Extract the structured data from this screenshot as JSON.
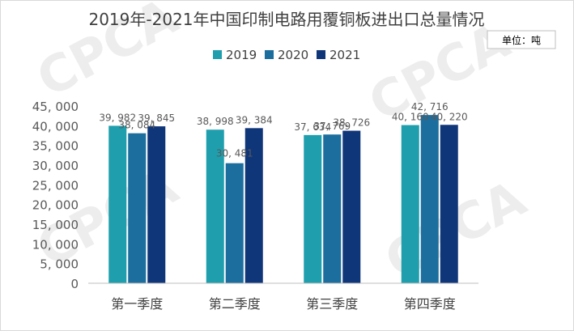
{
  "chart_data": {
    "type": "bar",
    "title": "2019年-2021年中国印制电路用覆铜板进出口总量情况",
    "unit_label": "单位：吨",
    "categories": [
      "第一季度",
      "第二季度",
      "第三季度",
      "第四季度"
    ],
    "series": [
      {
        "name": "2019",
        "values": [
          39982,
          38998,
          37634,
          40160
        ],
        "labels": [
          "39, 982",
          "38, 998",
          "37, 634",
          "40, 160"
        ],
        "color": "#1f9fad"
      },
      {
        "name": "2020",
        "values": [
          38084,
          30481,
          37769,
          42716
        ],
        "labels": [
          "38, 084",
          "30, 481",
          "37, 769",
          "42, 716"
        ],
        "color": "#1c6e9e"
      },
      {
        "name": "2021",
        "values": [
          39845,
          39384,
          38726,
          40220
        ],
        "labels": [
          "39, 845",
          "39, 384",
          "38, 726",
          "40, 220"
        ],
        "color": "#10367a"
      }
    ],
    "ylim": [
      0,
      45000
    ],
    "yticks": [
      0,
      5000,
      10000,
      15000,
      20000,
      25000,
      30000,
      35000,
      40000,
      45000
    ],
    "ytick_labels": [
      "0",
      "5, 000",
      "10, 000",
      "15, 000",
      "20, 000",
      "25, 000",
      "30, 000",
      "35, 000",
      "40, 000",
      "45, 000"
    ],
    "legend_position": "top-center",
    "grid": false
  },
  "watermark": {
    "text": "CPCA",
    "color": "#000000"
  }
}
